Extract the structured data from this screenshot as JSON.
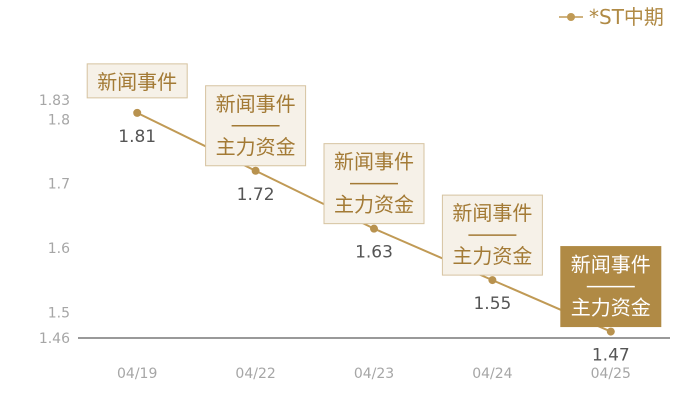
{
  "chart_data": {
    "type": "line",
    "x": [
      "04/19",
      "04/22",
      "04/23",
      "04/24",
      "04/25"
    ],
    "series": [
      {
        "name": "*ST中期",
        "values": [
          1.81,
          1.72,
          1.63,
          1.55,
          1.47
        ],
        "color": "#c09a55"
      }
    ],
    "value_labels": [
      "1.81",
      "1.72",
      "1.63",
      "1.55",
      "1.47"
    ],
    "y_ticks": [
      1.46,
      1.5,
      1.6,
      1.7,
      1.8,
      1.83
    ],
    "y_tick_labels": [
      "1.46",
      "1.5",
      "1.6",
      "1.7",
      "1.8",
      "1.83"
    ],
    "ylim": [
      1.46,
      1.83
    ],
    "grid": false,
    "legend": "top-right",
    "annotations": [
      {
        "x": "04/19",
        "lines": [
          "新闻事件"
        ],
        "style": "light"
      },
      {
        "x": "04/22",
        "lines": [
          "新闻事件",
          "主力资金"
        ],
        "style": "light"
      },
      {
        "x": "04/23",
        "lines": [
          "新闻事件",
          "主力资金"
        ],
        "style": "light"
      },
      {
        "x": "04/24",
        "lines": [
          "新闻事件",
          "主力资金"
        ],
        "style": "light"
      },
      {
        "x": "04/25",
        "lines": [
          "新闻事件",
          "主力资金"
        ],
        "style": "dark"
      }
    ],
    "colors": {
      "line": "#c09a55",
      "marker": "#b8924f",
      "annotation_light_bg": "#f6f1e8",
      "annotation_light_border": "#d6c3a0",
      "annotation_light_text": "#a37a35",
      "annotation_dark_bg": "#b08a45",
      "annotation_dark_text": "#ffffff",
      "axis": "#333333",
      "tick_text": "#a6a6a6",
      "value_text": "#555555"
    }
  }
}
